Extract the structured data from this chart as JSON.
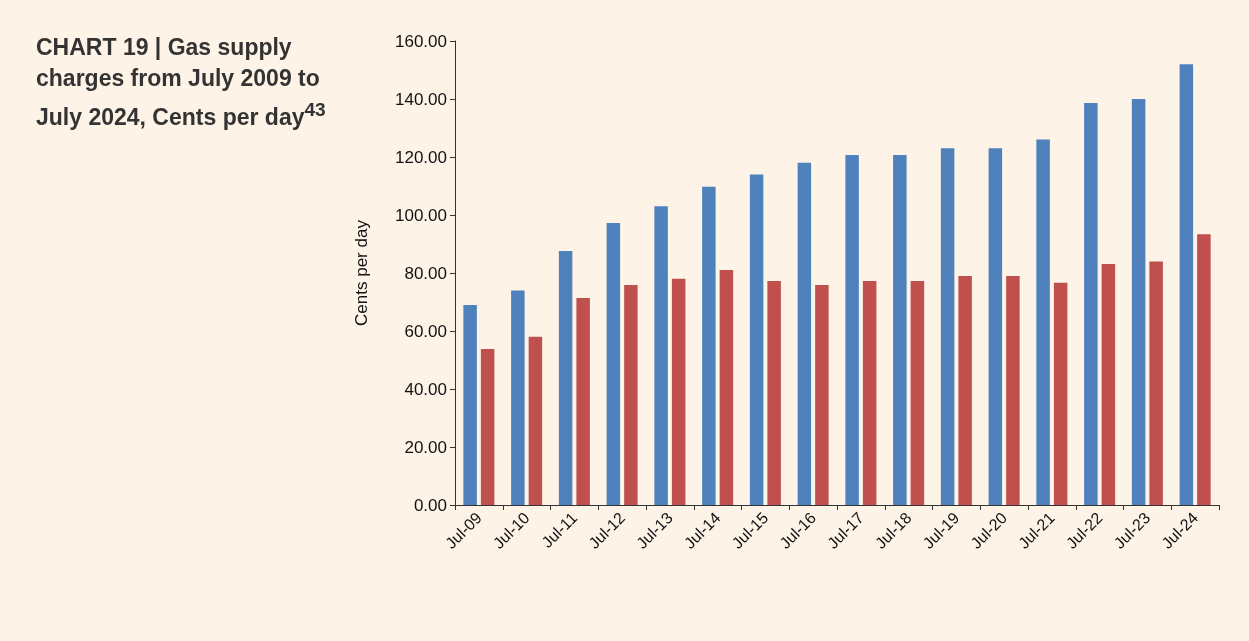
{
  "chart_data": {
    "type": "bar",
    "title": "CHART 19 | Gas supply charges from July 2009 to July 2024, Cents per day$^{43}$",
    "ylabel": "Cents per day",
    "categories": [
      "Jul-09",
      "Jul-10",
      "Jul-11",
      "Jul-12",
      "Jul-13",
      "Jul-14",
      "Jul-15",
      "Jul-16",
      "Jul-17",
      "Jul-18",
      "Jul-19",
      "Jul-20",
      "Jul-21",
      "Jul-22",
      "Jul-23",
      "Jul-24"
    ],
    "series": [
      {
        "color": "#4f81bd",
        "values": [
          69,
          74,
          87.6,
          97.2,
          103,
          109.7,
          114,
          118,
          120.7,
          120.7,
          123,
          123,
          126,
          138.6,
          140,
          152
        ]
      },
      {
        "color": "#c0504d",
        "values": [
          53.8,
          58,
          71.4,
          75.9,
          78,
          81,
          77.2,
          75.9,
          77.2,
          77.2,
          79,
          79,
          76.6,
          83.1,
          84,
          93.4
        ]
      }
    ],
    "ylim": [
      0,
      160
    ],
    "yticks": [
      {
        "value": 0,
        "label": "0.00"
      },
      {
        "value": 20,
        "label": "20.00"
      },
      {
        "value": 40,
        "label": "40.00"
      },
      {
        "value": 60,
        "label": "60.00"
      },
      {
        "value": 80,
        "label": "80.00"
      },
      {
        "value": 100,
        "label": "100.00"
      },
      {
        "value": 120,
        "label": "120.00"
      },
      {
        "value": 140,
        "label": "140.00"
      },
      {
        "value": 160,
        "label": "160.00"
      }
    ]
  }
}
